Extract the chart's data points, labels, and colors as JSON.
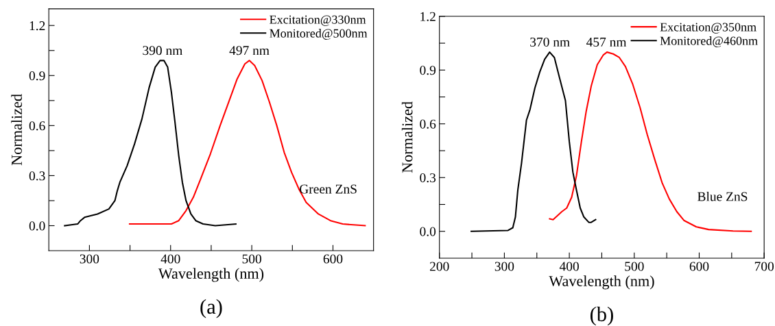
{
  "chart_data": [
    {
      "type": "line",
      "xlabel": "Wavelength (nm)",
      "ylabel": "Normalized",
      "xlim": [
        250,
        650
      ],
      "ylim": [
        -0.15,
        1.3
      ],
      "xticks": [
        300,
        {
          "value": 350,
          "label": null
        },
        400,
        {
          "value": 450,
          "label": null
        },
        500,
        {
          "value": 550,
          "label": null
        },
        600
      ],
      "yticks": [
        {
          "value": 0,
          "label": "0.0"
        },
        {
          "value": 0.15,
          "label": null
        },
        0.3,
        {
          "value": 0.45,
          "label": null
        },
        0.6,
        {
          "value": 0.75,
          "label": null
        },
        0.9,
        {
          "value": 1.05,
          "label": null
        },
        1.2
      ],
      "legend": "top right",
      "grid": false,
      "series": [
        {
          "name": "Excitation@330nm",
          "color": "#ff0000",
          "x": [
            349.5,
            370.7,
            401,
            410,
            419,
            428,
            437,
            449,
            461,
            473,
            482,
            491.5,
            497,
            503.6,
            512.7,
            521.8,
            530.8,
            539.9,
            549,
            558,
            567,
            582,
            597,
            612,
            639.6
          ],
          "values": [
            0.01,
            0.01,
            0.01,
            0.03,
            0.09,
            0.17,
            0.28,
            0.43,
            0.6,
            0.76,
            0.88,
            0.97,
            0.99,
            0.96,
            0.87,
            0.74,
            0.6,
            0.44,
            0.32,
            0.22,
            0.14,
            0.07,
            0.03,
            0.01,
            0.0
          ]
        },
        {
          "name": "Monitored@500nm",
          "color": "#000000",
          "x": [
            269.5,
            285.5,
            289,
            294,
            310,
            324,
            331.4,
            334.4,
            337.5,
            346.5,
            355.6,
            364.7,
            373.7,
            381,
            387,
            391.8,
            396.4,
            401,
            405.4,
            410,
            414.5,
            419,
            425,
            431,
            440,
            455,
            480.4
          ],
          "values": [
            0.0,
            0.01,
            0.03,
            0.05,
            0.07,
            0.1,
            0.15,
            0.21,
            0.26,
            0.36,
            0.49,
            0.64,
            0.83,
            0.95,
            0.99,
            0.99,
            0.95,
            0.8,
            0.62,
            0.42,
            0.26,
            0.15,
            0.07,
            0.03,
            0.01,
            0.0,
            0.01
          ]
        }
      ],
      "annotations": [
        {
          "text": "390 nm",
          "x": 390,
          "y": 0.99
        },
        {
          "text": "497 nm",
          "x": 497,
          "y": 0.99
        },
        "Green ZnS",
        "(a)"
      ]
    },
    {
      "type": "line",
      "xlabel": "Wavelength (nm)",
      "ylabel": "Normalized",
      "xlim": [
        200,
        700
      ],
      "ylim": [
        -0.15,
        1.2
      ],
      "xticks": [
        200,
        {
          "value": 250,
          "label": null
        },
        300,
        {
          "value": 350,
          "label": null
        },
        400,
        {
          "value": 450,
          "label": null
        },
        500,
        {
          "value": 550,
          "label": null
        },
        600,
        {
          "value": 650,
          "label": null
        },
        700
      ],
      "yticks": [
        {
          "value": 0,
          "label": "0.0"
        },
        {
          "value": 0.15,
          "label": null
        },
        0.3,
        {
          "value": 0.45,
          "label": null
        },
        0.6,
        {
          "value": 0.75,
          "label": null
        },
        0.9,
        {
          "value": 1.05,
          "label": null
        },
        1.2
      ],
      "legend": "top right",
      "grid": false,
      "series": [
        {
          "name": "Excitation@350nm",
          "color": "#ff0000",
          "x": [
            369.7,
            375,
            388.5,
            396,
            403.6,
            411,
            418.6,
            426,
            433.7,
            443,
            452.5,
            458,
            467.6,
            477,
            486.4,
            497.7,
            509,
            520,
            531.6,
            543,
            554,
            565.5,
            576.8,
            595.6,
            614.5,
            652,
            680
          ],
          "values": [
            0.07,
            0.065,
            0.11,
            0.13,
            0.19,
            0.31,
            0.5,
            0.67,
            0.81,
            0.93,
            0.985,
            1.0,
            0.99,
            0.97,
            0.92,
            0.82,
            0.69,
            0.54,
            0.4,
            0.27,
            0.18,
            0.11,
            0.06,
            0.025,
            0.01,
            0.002,
            0.0
          ]
        },
        {
          "name": "Monitored@460nm",
          "color": "#000000",
          "x": [
            249,
            305.6,
            313,
            317,
            320.7,
            326.4,
            334,
            339.5,
            347,
            354.6,
            362,
            369.7,
            377,
            384.7,
            394,
            400,
            405.5,
            411,
            416.8,
            422.4,
            430,
            433.7,
            440.5
          ],
          "values": [
            0.0,
            0.005,
            0.02,
            0.08,
            0.23,
            0.38,
            0.62,
            0.68,
            0.8,
            0.89,
            0.96,
            1.0,
            0.97,
            0.86,
            0.73,
            0.5,
            0.33,
            0.23,
            0.13,
            0.08,
            0.05,
            0.05,
            0.065
          ]
        }
      ],
      "annotations": [
        {
          "text": "370 nm",
          "x": 370,
          "y": 1.0
        },
        {
          "text": "457 nm",
          "x": 457,
          "y": 1.0
        },
        "Blue ZnS",
        "(b)"
      ]
    }
  ]
}
